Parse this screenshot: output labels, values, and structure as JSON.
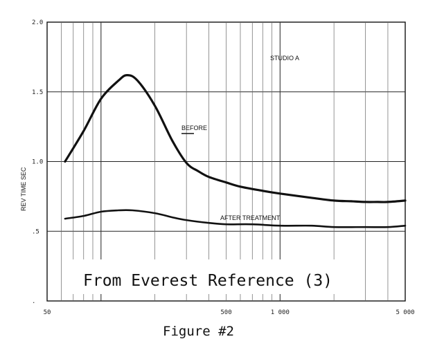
{
  "chart_data": {
    "type": "line",
    "title": "STUDIO A",
    "xlabel": "",
    "ylabel": "REV TIME SEC",
    "xscale": "log",
    "xlim": [
      50,
      5000
    ],
    "ylim": [
      0,
      2.0
    ],
    "y_ticks": [
      {
        "value": 2.0,
        "label": "2.0"
      },
      {
        "value": 1.5,
        "label": "1.5"
      },
      {
        "value": 1.0,
        "label": "1.0"
      },
      {
        "value": 0.5,
        "label": ".5"
      },
      {
        "value": 0.0,
        "label": "."
      }
    ],
    "x_ticks": [
      {
        "value": 50,
        "label": "50"
      },
      {
        "value": 500,
        "label": "500"
      },
      {
        "value": 1000,
        "label": "1 000"
      },
      {
        "value": 5000,
        "label": "5 000"
      }
    ],
    "series": [
      {
        "name": "BEFORE",
        "x": [
          63,
          80,
          100,
          125,
          140,
          160,
          200,
          250,
          300,
          350,
          400,
          500,
          600,
          800,
          1000,
          1500,
          2000,
          2500,
          3000,
          3500,
          4000,
          5000
        ],
        "y": [
          1.0,
          1.22,
          1.45,
          1.58,
          1.62,
          1.58,
          1.4,
          1.15,
          0.99,
          0.93,
          0.89,
          0.85,
          0.82,
          0.79,
          0.77,
          0.74,
          0.72,
          0.715,
          0.71,
          0.71,
          0.71,
          0.72
        ]
      },
      {
        "name": "AFTER TREATMENT",
        "x": [
          63,
          80,
          100,
          125,
          150,
          200,
          250,
          300,
          400,
          500,
          700,
          1000,
          1500,
          2000,
          3000,
          4000,
          5000
        ],
        "y": [
          0.59,
          0.61,
          0.64,
          0.65,
          0.65,
          0.63,
          0.6,
          0.58,
          0.56,
          0.55,
          0.55,
          0.54,
          0.54,
          0.53,
          0.53,
          0.53,
          0.54
        ]
      }
    ],
    "annotations": {
      "before_label": "BEFORE",
      "after_label": "AFTER TREATMENT",
      "studio_label": "STUDIO A",
      "reference": "From Everest Reference (3)"
    }
  },
  "caption": "Figure #2"
}
